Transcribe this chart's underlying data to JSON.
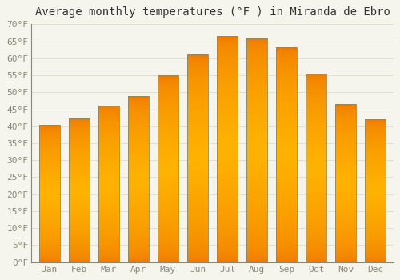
{
  "title": "Average monthly temperatures (°F ) in Miranda de Ebro",
  "months": [
    "Jan",
    "Feb",
    "Mar",
    "Apr",
    "May",
    "Jun",
    "Jul",
    "Aug",
    "Sep",
    "Oct",
    "Nov",
    "Dec"
  ],
  "values": [
    40.3,
    42.3,
    46.0,
    49.0,
    55.0,
    61.2,
    66.5,
    65.8,
    63.2,
    55.5,
    46.5,
    42.1
  ],
  "bar_color_center": "#FFB300",
  "bar_color_edge": "#F07800",
  "bar_outline": "#888866",
  "ylim": [
    0,
    70
  ],
  "yticks": [
    0,
    5,
    10,
    15,
    20,
    25,
    30,
    35,
    40,
    45,
    50,
    55,
    60,
    65,
    70
  ],
  "background_color": "#F5F5EE",
  "plot_bg_color": "#F5F5EE",
  "grid_color": "#DDDDCC",
  "tick_label_color": "#888877",
  "title_color": "#333333",
  "title_fontsize": 10,
  "tick_fontsize": 8
}
